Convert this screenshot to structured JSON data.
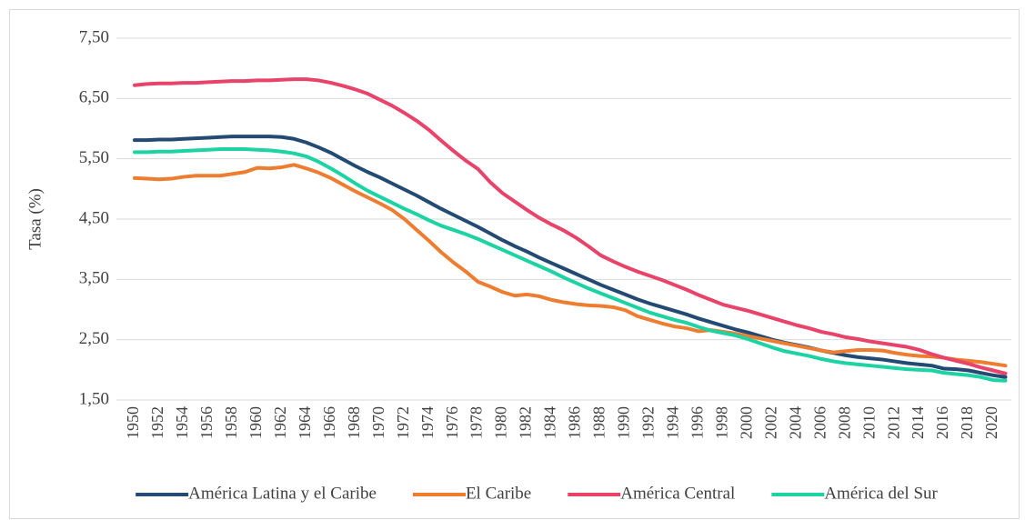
{
  "chart_data": {
    "type": "line",
    "y_label": "Tasa (%)",
    "x": [
      1950,
      1951,
      1952,
      1953,
      1954,
      1955,
      1956,
      1957,
      1958,
      1959,
      1960,
      1961,
      1962,
      1963,
      1964,
      1965,
      1966,
      1967,
      1968,
      1969,
      1970,
      1971,
      1972,
      1973,
      1974,
      1975,
      1976,
      1977,
      1978,
      1979,
      1980,
      1981,
      1982,
      1983,
      1984,
      1985,
      1986,
      1987,
      1988,
      1989,
      1990,
      1991,
      1992,
      1993,
      1994,
      1995,
      1996,
      1997,
      1998,
      1999,
      2000,
      2001,
      2002,
      2003,
      2004,
      2005,
      2006,
      2007,
      2008,
      2009,
      2010,
      2011,
      2012,
      2013,
      2014,
      2015,
      2016,
      2017,
      2018,
      2019,
      2020,
      2021
    ],
    "xlim": [
      1950,
      2021
    ],
    "xticks": [
      1950,
      1952,
      1954,
      1956,
      1958,
      1960,
      1962,
      1964,
      1966,
      1968,
      1970,
      1972,
      1974,
      1976,
      1978,
      1980,
      1982,
      1984,
      1986,
      1988,
      1990,
      1992,
      1994,
      1996,
      1998,
      2000,
      2002,
      2004,
      2006,
      2008,
      2010,
      2012,
      2014,
      2016,
      2018,
      2020
    ],
    "ylim": [
      1.5,
      7.5
    ],
    "yticks": [
      {
        "value": 1.5,
        "label": "1,50"
      },
      {
        "value": 2.5,
        "label": "2,50"
      },
      {
        "value": 3.5,
        "label": "3,50"
      },
      {
        "value": 4.5,
        "label": "4,50"
      },
      {
        "value": 5.5,
        "label": "5,50"
      },
      {
        "value": 6.5,
        "label": "6,50"
      },
      {
        "value": 7.5,
        "label": "7,50"
      }
    ],
    "grid": true,
    "legend": "bottom",
    "series": [
      {
        "name": "América Latina y el Caribe",
        "color": "#234a73",
        "values": [
          5.81,
          5.81,
          5.82,
          5.82,
          5.83,
          5.84,
          5.85,
          5.86,
          5.87,
          5.87,
          5.87,
          5.87,
          5.86,
          5.83,
          5.77,
          5.69,
          5.6,
          5.49,
          5.38,
          5.28,
          5.19,
          5.09,
          4.99,
          4.89,
          4.78,
          4.67,
          4.57,
          4.47,
          4.37,
          4.26,
          4.15,
          4.05,
          3.96,
          3.86,
          3.77,
          3.68,
          3.59,
          3.5,
          3.41,
          3.33,
          3.25,
          3.17,
          3.1,
          3.04,
          2.98,
          2.92,
          2.85,
          2.79,
          2.73,
          2.67,
          2.62,
          2.56,
          2.5,
          2.45,
          2.41,
          2.37,
          2.32,
          2.28,
          2.24,
          2.21,
          2.19,
          2.17,
          2.14,
          2.11,
          2.09,
          2.07,
          2.02,
          2.01,
          1.99,
          1.95,
          1.91,
          1.88
        ]
      },
      {
        "name": "El Caribe",
        "color": "#ed7d31",
        "values": [
          5.18,
          5.17,
          5.16,
          5.17,
          5.2,
          5.22,
          5.22,
          5.22,
          5.25,
          5.28,
          5.35,
          5.34,
          5.36,
          5.4,
          5.34,
          5.27,
          5.18,
          5.07,
          4.96,
          4.86,
          4.76,
          4.65,
          4.5,
          4.32,
          4.14,
          3.95,
          3.78,
          3.63,
          3.46,
          3.38,
          3.29,
          3.23,
          3.25,
          3.22,
          3.16,
          3.12,
          3.09,
          3.07,
          3.06,
          3.04,
          2.99,
          2.89,
          2.83,
          2.77,
          2.72,
          2.69,
          2.64,
          2.66,
          2.63,
          2.6,
          2.56,
          2.52,
          2.48,
          2.44,
          2.4,
          2.36,
          2.32,
          2.29,
          2.31,
          2.33,
          2.33,
          2.32,
          2.28,
          2.25,
          2.23,
          2.22,
          2.2,
          2.17,
          2.15,
          2.13,
          2.1,
          2.07
        ]
      },
      {
        "name": "América Central",
        "color": "#e8446a",
        "values": [
          6.72,
          6.74,
          6.75,
          6.75,
          6.76,
          6.76,
          6.77,
          6.78,
          6.79,
          6.79,
          6.8,
          6.8,
          6.81,
          6.82,
          6.82,
          6.8,
          6.76,
          6.71,
          6.65,
          6.58,
          6.48,
          6.38,
          6.26,
          6.13,
          5.98,
          5.8,
          5.63,
          5.47,
          5.33,
          5.11,
          4.93,
          4.79,
          4.65,
          4.52,
          4.41,
          4.31,
          4.19,
          4.05,
          3.9,
          3.8,
          3.71,
          3.63,
          3.56,
          3.49,
          3.41,
          3.33,
          3.24,
          3.16,
          3.08,
          3.03,
          2.98,
          2.92,
          2.86,
          2.8,
          2.74,
          2.69,
          2.63,
          2.59,
          2.54,
          2.51,
          2.47,
          2.44,
          2.41,
          2.38,
          2.33,
          2.26,
          2.2,
          2.15,
          2.1,
          2.04,
          1.99,
          1.94
        ]
      },
      {
        "name": "América del Sur",
        "color": "#1ed3a3",
        "values": [
          5.61,
          5.61,
          5.62,
          5.62,
          5.63,
          5.64,
          5.65,
          5.66,
          5.66,
          5.66,
          5.65,
          5.64,
          5.62,
          5.59,
          5.54,
          5.45,
          5.34,
          5.22,
          5.09,
          4.97,
          4.87,
          4.77,
          4.67,
          4.58,
          4.48,
          4.39,
          4.32,
          4.25,
          4.17,
          4.08,
          3.99,
          3.9,
          3.81,
          3.72,
          3.63,
          3.53,
          3.44,
          3.35,
          3.27,
          3.19,
          3.11,
          3.03,
          2.95,
          2.89,
          2.83,
          2.78,
          2.71,
          2.65,
          2.61,
          2.57,
          2.51,
          2.44,
          2.37,
          2.31,
          2.27,
          2.23,
          2.18,
          2.14,
          2.11,
          2.09,
          2.07,
          2.05,
          2.03,
          2.01,
          2.0,
          1.99,
          1.95,
          1.93,
          1.91,
          1.88,
          1.83,
          1.82
        ]
      }
    ]
  }
}
